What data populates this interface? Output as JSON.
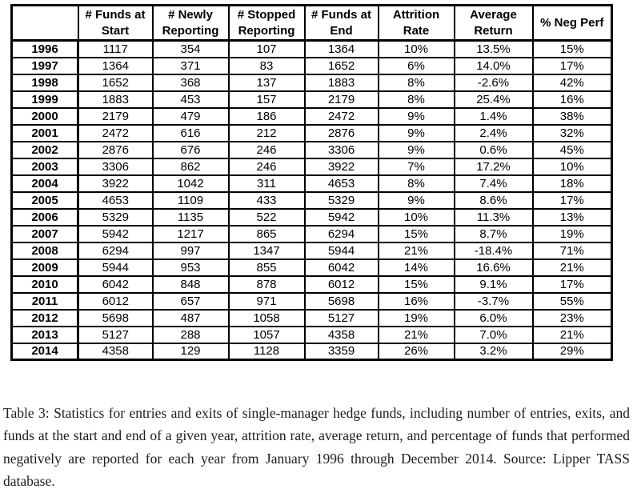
{
  "table": {
    "headers": [
      "# Funds at\nStart",
      "# Newly\nReporting",
      "# Stopped\nReporting",
      "# Funds at\nEnd",
      "Attrition\nRate",
      "Average\nReturn",
      "% Neg Perf"
    ],
    "rows": [
      {
        "year": "1996",
        "values": [
          "1117",
          "354",
          "107",
          "1364",
          "10%",
          "13.5%",
          "15%"
        ]
      },
      {
        "year": "1997",
        "values": [
          "1364",
          "371",
          "83",
          "1652",
          "6%",
          "14.0%",
          "17%"
        ]
      },
      {
        "year": "1998",
        "values": [
          "1652",
          "368",
          "137",
          "1883",
          "8%",
          "-2.6%",
          "42%"
        ]
      },
      {
        "year": "1999",
        "values": [
          "1883",
          "453",
          "157",
          "2179",
          "8%",
          "25.4%",
          "16%"
        ]
      },
      {
        "year": "2000",
        "values": [
          "2179",
          "479",
          "186",
          "2472",
          "9%",
          "1.4%",
          "38%"
        ]
      },
      {
        "year": "2001",
        "values": [
          "2472",
          "616",
          "212",
          "2876",
          "9%",
          "2.4%",
          "32%"
        ]
      },
      {
        "year": "2002",
        "values": [
          "2876",
          "676",
          "246",
          "3306",
          "9%",
          "0.6%",
          "45%"
        ]
      },
      {
        "year": "2003",
        "values": [
          "3306",
          "862",
          "246",
          "3922",
          "7%",
          "17.2%",
          "10%"
        ]
      },
      {
        "year": "2004",
        "values": [
          "3922",
          "1042",
          "311",
          "4653",
          "8%",
          "7.4%",
          "18%"
        ]
      },
      {
        "year": "2005",
        "values": [
          "4653",
          "1109",
          "433",
          "5329",
          "9%",
          "8.6%",
          "17%"
        ]
      },
      {
        "year": "2006",
        "values": [
          "5329",
          "1135",
          "522",
          "5942",
          "10%",
          "11.3%",
          "13%"
        ]
      },
      {
        "year": "2007",
        "values": [
          "5942",
          "1217",
          "865",
          "6294",
          "15%",
          "8.7%",
          "19%"
        ]
      },
      {
        "year": "2008",
        "values": [
          "6294",
          "997",
          "1347",
          "5944",
          "21%",
          "-18.4%",
          "71%"
        ]
      },
      {
        "year": "2009",
        "values": [
          "5944",
          "953",
          "855",
          "6042",
          "14%",
          "16.6%",
          "21%"
        ]
      },
      {
        "year": "2010",
        "values": [
          "6042",
          "848",
          "878",
          "6012",
          "15%",
          "9.1%",
          "17%"
        ]
      },
      {
        "year": "2011",
        "values": [
          "6012",
          "657",
          "971",
          "5698",
          "16%",
          "-3.7%",
          "55%"
        ]
      },
      {
        "year": "2012",
        "values": [
          "5698",
          "487",
          "1058",
          "5127",
          "19%",
          "6.0%",
          "23%"
        ]
      },
      {
        "year": "2013",
        "values": [
          "5127",
          "288",
          "1057",
          "4358",
          "21%",
          "7.0%",
          "21%"
        ]
      },
      {
        "year": "2014",
        "values": [
          "4358",
          "129",
          "1128",
          "3359",
          "26%",
          "3.2%",
          "29%"
        ]
      }
    ]
  },
  "caption": {
    "text": "Table 3: Statistics for entries and exits of single-manager hedge funds, including number of entries, exits, and funds at the start and end of a given year, attrition rate, average return, and percentage of funds that performed negatively are reported for each year from January 1996 through December 2014. Source: Lipper TASS database."
  },
  "colors": {
    "border": "#000000",
    "text": "#000000",
    "background": "#ffffff"
  }
}
